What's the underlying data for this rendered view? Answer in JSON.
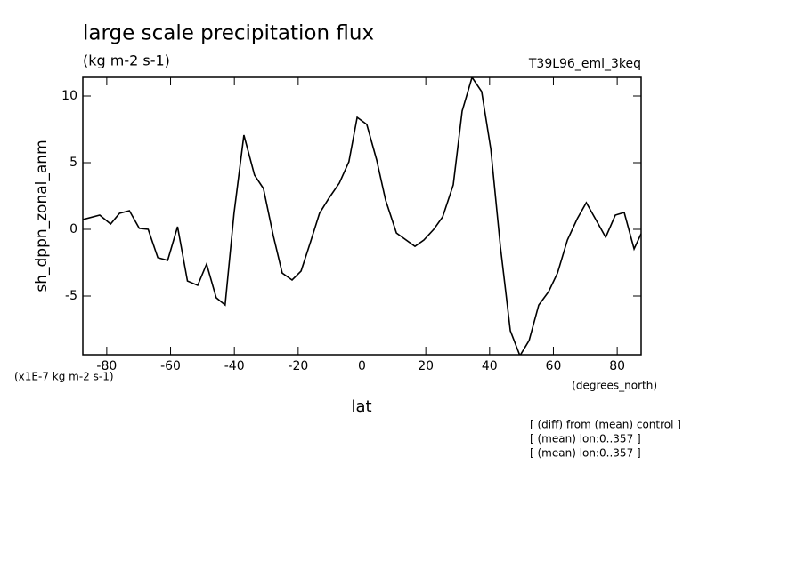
{
  "chart_data": {
    "type": "line",
    "title": "large scale precipitation flux",
    "subtitle": "(kg m-2 s-1)",
    "dataset": "T39L96_eml_3keq",
    "y_label": "sh_dppn_zonal_anm",
    "x_label": "lat",
    "y_units": "(x1E-7 kg m-2 s-1)",
    "x_units": "(degrees_north)",
    "notes": [
      "[ (diff) from (mean) control ]",
      "[ (mean) lon:0..357 ]",
      "[ (mean) lon:0..357 ]"
    ],
    "color": "#000000",
    "xlim": [
      -87.5,
      87.5
    ],
    "ylim": [
      -9.4,
      11.4
    ],
    "xticks": [
      -80,
      -60,
      -40,
      -20,
      0,
      20,
      40,
      60,
      80
    ],
    "yticks": [
      -5,
      0,
      5,
      10
    ],
    "x": [
      -87.5,
      -82.2,
      -78.8,
      -76.0,
      -72.9,
      -69.8,
      -67.0,
      -64.0,
      -60.9,
      -57.8,
      -54.7,
      -51.5,
      -48.7,
      -45.7,
      -42.9,
      -40.1,
      -37.0,
      -33.7,
      -30.9,
      -27.8,
      -25.0,
      -21.9,
      -19.1,
      -16.1,
      -13.3,
      -10.2,
      -7.1,
      -4.1,
      -1.5,
      1.5,
      4.6,
      7.4,
      10.8,
      16.6,
      19.4,
      22.5,
      25.3,
      28.6,
      31.4,
      34.5,
      37.5,
      40.4,
      43.4,
      46.5,
      49.5,
      52.4,
      55.4,
      58.5,
      61.3,
      64.4,
      67.5,
      70.3,
      73.3,
      76.4,
      79.4,
      82.2,
      85.3,
      87.5
    ],
    "values": [
      0.73,
      1.07,
      0.4,
      1.2,
      1.4,
      0.07,
      0.0,
      -2.13,
      -2.33,
      0.2,
      -3.87,
      -4.2,
      -2.6,
      -5.13,
      -5.67,
      1.2,
      7.07,
      4.07,
      3.07,
      -0.47,
      -3.27,
      -3.8,
      -3.13,
      -0.93,
      1.2,
      2.4,
      3.47,
      5.07,
      8.4,
      7.87,
      5.2,
      2.2,
      -0.27,
      -1.27,
      -0.8,
      0.0,
      0.93,
      3.33,
      8.87,
      11.4,
      10.33,
      6.0,
      -1.33,
      -7.6,
      -9.47,
      -8.33,
      -5.67,
      -4.67,
      -3.27,
      -0.8,
      0.8,
      2.0,
      0.73,
      -0.6,
      1.07,
      1.27,
      -1.47,
      -0.33
    ]
  }
}
